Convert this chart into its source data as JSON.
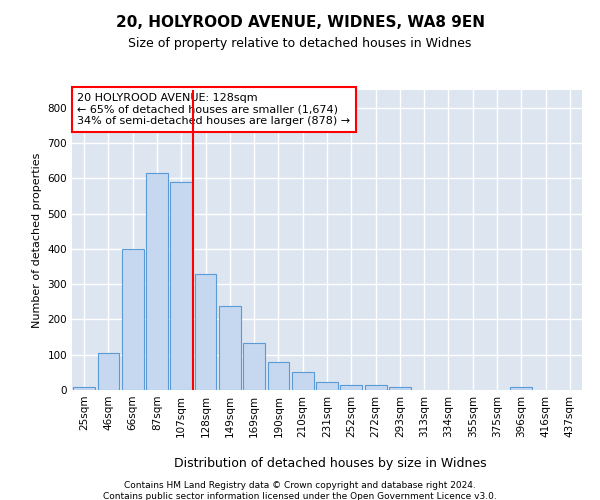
{
  "title1": "20, HOLYROOD AVENUE, WIDNES, WA8 9EN",
  "title2": "Size of property relative to detached houses in Widnes",
  "xlabel": "Distribution of detached houses by size in Widnes",
  "ylabel": "Number of detached properties",
  "footer1": "Contains HM Land Registry data © Crown copyright and database right 2024.",
  "footer2": "Contains public sector information licensed under the Open Government Licence v3.0.",
  "categories": [
    "25sqm",
    "46sqm",
    "66sqm",
    "87sqm",
    "107sqm",
    "128sqm",
    "149sqm",
    "169sqm",
    "190sqm",
    "210sqm",
    "231sqm",
    "252sqm",
    "272sqm",
    "293sqm",
    "313sqm",
    "334sqm",
    "355sqm",
    "375sqm",
    "396sqm",
    "416sqm",
    "437sqm"
  ],
  "values": [
    8,
    105,
    400,
    615,
    590,
    330,
    238,
    133,
    78,
    50,
    22,
    15,
    15,
    8,
    0,
    0,
    0,
    0,
    8,
    0,
    0
  ],
  "bar_color": "#c5d8f0",
  "bar_edge_color": "#5b9bd5",
  "vline_index": 5,
  "vline_color": "red",
  "annotation_title": "20 HOLYROOD AVENUE: 128sqm",
  "annotation_line1": "← 65% of detached houses are smaller (1,674)",
  "annotation_line2": "34% of semi-detached houses are larger (878) →",
  "annotation_box_color": "white",
  "annotation_box_edge": "red",
  "ylim": [
    0,
    850
  ],
  "yticks": [
    0,
    100,
    200,
    300,
    400,
    500,
    600,
    700,
    800
  ],
  "background_color": "#dde5f0",
  "grid_color": "white",
  "title1_fontsize": 11,
  "title2_fontsize": 9,
  "ylabel_fontsize": 8,
  "xlabel_fontsize": 9,
  "tick_fontsize": 7.5,
  "footer_fontsize": 6.5
}
